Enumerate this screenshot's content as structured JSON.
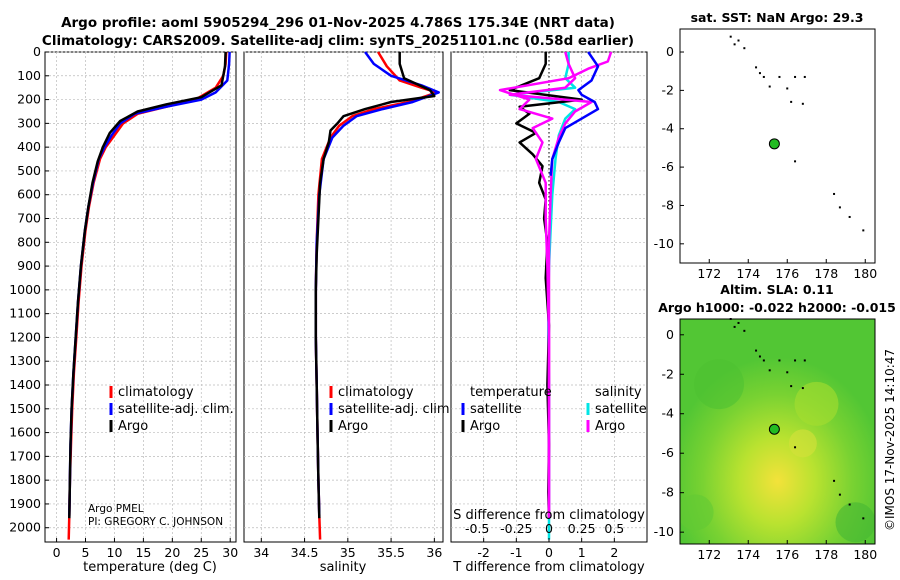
{
  "title_line1": "Argo profile: aoml 5905294_296 01-Nov-2025 4.786S 175.34E (NRT data)",
  "title_line2": "Climatology: CARS2009. Satellite-adj clim: synTS_20251101.nc (0.58d earlier)",
  "credit_line1": "Argo PMEL",
  "credit_line2": "PI: GREGORY C. JOHNSON",
  "timestamp": "©IMOS 17-Nov-2025 14:10:47",
  "colors": {
    "climatology": "#ff0000",
    "satellite": "#0000ff",
    "argo": "#000000",
    "sat_T": "#00e5e5",
    "sat_S": "#ff00ff",
    "argo_S": "#ff00ff",
    "marker": "#22bb22"
  },
  "chart_data": [
    {
      "type": "line",
      "id": "temperature",
      "xlabel": "temperature (deg C)",
      "ylabel": "",
      "xlim": [
        -2,
        31
      ],
      "ylim": [
        2060,
        0
      ],
      "xticks": [
        0,
        5,
        10,
        15,
        20,
        25,
        30
      ],
      "yticks": [
        0,
        100,
        200,
        300,
        400,
        500,
        600,
        700,
        800,
        900,
        1000,
        1100,
        1200,
        1300,
        1400,
        1500,
        1600,
        1700,
        1800,
        1900,
        2000
      ],
      "legend": [
        "climatology",
        "satellite-adj. clim.",
        "Argo"
      ],
      "series": [
        {
          "name": "climatology",
          "color": "#ff0000",
          "x": [
            29.3,
            29.2,
            28.8,
            27.5,
            24,
            19,
            14,
            11.5,
            10,
            8.5,
            7.5,
            6.4,
            5.6,
            5.0,
            4.3,
            3.8,
            3.4,
            3.0,
            2.7,
            2.5,
            2.3,
            2.2,
            2.1
          ],
          "y": [
            0,
            50,
            100,
            150,
            200,
            230,
            260,
            300,
            350,
            400,
            450,
            550,
            650,
            750,
            900,
            1050,
            1200,
            1350,
            1500,
            1650,
            1800,
            1950,
            2050
          ]
        },
        {
          "name": "satellite-adj. clim.",
          "color": "#0000ff",
          "x": [
            29.9,
            29.8,
            29.5,
            27.5,
            25,
            19,
            13.5,
            11,
            9.5,
            8.3,
            7.3,
            6.3,
            5.5,
            4.9,
            4.2,
            3.7,
            3.3,
            2.9,
            2.6,
            2.4,
            2.3,
            2.2
          ],
          "y": [
            0,
            50,
            120,
            170,
            200,
            230,
            260,
            300,
            350,
            400,
            450,
            550,
            650,
            750,
            900,
            1050,
            1200,
            1350,
            1500,
            1650,
            1800,
            1950
          ]
        },
        {
          "name": "Argo",
          "color": "#000000",
          "x": [
            29.2,
            29.1,
            28.5,
            25,
            19,
            14,
            11,
            9.2,
            8.0,
            7.1,
            6.2,
            5.5,
            4.9,
            4.2,
            3.7,
            3.3,
            2.9,
            2.6,
            2.4,
            2.3,
            2.2
          ],
          "y": [
            0,
            60,
            140,
            190,
            220,
            250,
            290,
            340,
            400,
            460,
            550,
            650,
            750,
            900,
            1050,
            1200,
            1350,
            1500,
            1650,
            1800,
            1960
          ]
        }
      ]
    },
    {
      "type": "line",
      "id": "salinity",
      "xlabel": "salinity",
      "ylabel": "",
      "xlim": [
        33.8,
        36.1
      ],
      "ylim": [
        2060,
        0
      ],
      "xticks": [
        34,
        34.5,
        35,
        35.5,
        36
      ],
      "xticklabels": [
        "34",
        "34.5",
        "35",
        "35.5",
        "36"
      ],
      "legend": [
        "climatology",
        "satellite-adj. clim.",
        "Argo"
      ],
      "series": [
        {
          "name": "climatology",
          "color": "#ff0000",
          "x": [
            35.35,
            35.45,
            35.6,
            35.85,
            36.03,
            35.7,
            35.3,
            35.05,
            34.9,
            34.8,
            34.7,
            34.66,
            34.64,
            34.63,
            34.63,
            34.64,
            34.65,
            34.66,
            34.67,
            34.68
          ],
          "y": [
            0,
            60,
            120,
            150,
            170,
            210,
            240,
            270,
            310,
            360,
            450,
            600,
            800,
            1000,
            1200,
            1400,
            1600,
            1800,
            1950,
            2050
          ]
        },
        {
          "name": "satellite-adj. clim.",
          "color": "#0000ff",
          "x": [
            35.2,
            35.3,
            35.5,
            35.85,
            36.05,
            35.75,
            35.4,
            35.1,
            34.95,
            34.82,
            34.72,
            34.67,
            34.64,
            34.63,
            34.63,
            34.64,
            34.65,
            34.66,
            34.67
          ],
          "y": [
            0,
            50,
            100,
            140,
            170,
            210,
            240,
            270,
            310,
            360,
            450,
            600,
            800,
            1000,
            1200,
            1400,
            1600,
            1800,
            1950
          ]
        },
        {
          "name": "Argo",
          "color": "#000000",
          "x": [
            35.6,
            35.6,
            35.65,
            35.95,
            36.0,
            35.5,
            35.2,
            34.95,
            34.88,
            34.8,
            34.78,
            34.72,
            34.68,
            34.66,
            34.64,
            34.63,
            34.63,
            34.64,
            34.65,
            34.66,
            34.67
          ],
          "y": [
            0,
            50,
            110,
            160,
            185,
            210,
            240,
            270,
            300,
            330,
            380,
            450,
            550,
            700,
            850,
            1000,
            1200,
            1400,
            1600,
            1800,
            1960
          ]
        }
      ]
    },
    {
      "type": "line",
      "id": "difference",
      "xlabel": "T difference from climatology",
      "top_xlabel": "S difference from climatology",
      "xlim": [
        -3,
        3
      ],
      "ylim": [
        2060,
        0
      ],
      "xticks": [
        -2,
        -1,
        0,
        1,
        2
      ],
      "xticklabels": [
        "-2",
        "-1",
        "0",
        "1",
        "2"
      ],
      "top_xticklabels": [
        "-0.5",
        "-0.25",
        "0",
        "0.25",
        "0.5"
      ],
      "legend_title_T": "temperature",
      "legend_title_S": "salinity",
      "legend": [
        "satellite",
        "Argo",
        "satellite",
        "Argo"
      ],
      "series": [
        {
          "name": "T satellite",
          "color": "#00e5e5",
          "x": [
            0.6,
            0.6,
            0.5,
            0.8,
            -1.2,
            0.3,
            0.8,
            0.5,
            0.3,
            0.2,
            0.1,
            0.05,
            0.0,
            -0.02,
            -0.02,
            0,
            0,
            0,
            0,
            0,
            0
          ],
          "y": [
            0,
            50,
            110,
            150,
            180,
            210,
            240,
            280,
            350,
            450,
            600,
            750,
            900,
            1050,
            1200,
            1400,
            1600,
            1750,
            1850,
            1950,
            2050
          ]
        },
        {
          "name": "T Argo",
          "color": "#000000",
          "x": [
            -0.1,
            -0.1,
            -0.3,
            -1.2,
            1.0,
            -0.9,
            -0.6,
            -1.0,
            -0.4,
            -0.9,
            -0.5,
            -0.2,
            -0.3,
            -0.1,
            -0.15,
            -0.05,
            -0.1,
            0.0,
            -0.05,
            0.0,
            -0.02,
            0.0
          ],
          "y": [
            0,
            50,
            110,
            160,
            200,
            230,
            260,
            300,
            340,
            380,
            430,
            480,
            550,
            620,
            700,
            800,
            950,
            1150,
            1400,
            1650,
            1850,
            1960
          ]
        },
        {
          "name": "S satellite",
          "color": "#ff00ff",
          "x": [
            0.5,
            0.6,
            0.8,
            0.5,
            -1.2,
            1.3,
            0.8,
            0.5,
            0.3,
            0.1,
            0.05,
            0.0,
            0.0,
            0.0,
            0.0
          ],
          "y": [
            0,
            50,
            110,
            150,
            180,
            210,
            250,
            300,
            360,
            450,
            600,
            800,
            1100,
            1500,
            1950
          ]
        },
        {
          "name": "S Argo",
          "color": "#ff00ff",
          "x": [
            1.9,
            1.8,
            1.2,
            0.6,
            -1.5,
            -0.6,
            -0.9,
            0.1,
            -0.5,
            -0.2,
            -0.4,
            -0.1,
            -0.1,
            -0.05,
            0.0,
            0.0,
            0.0
          ],
          "y": [
            0,
            40,
            70,
            110,
            160,
            200,
            240,
            280,
            320,
            380,
            450,
            550,
            700,
            900,
            1200,
            1600,
            1960
          ]
        },
        {
          "name": "S satellite clim",
          "color": "#0000ff",
          "x": [
            1.2,
            1.5,
            1.3,
            0.9,
            1.0,
            1.4,
            1.5,
            1.0,
            0.5,
            0.3,
            0.1,
            0.05
          ],
          "y": [
            0,
            60,
            120,
            160,
            180,
            210,
            240,
            280,
            320,
            380,
            450,
            520
          ]
        }
      ]
    },
    {
      "type": "scatter",
      "id": "sst_map",
      "title": "sat. SST: NaN Argo: 29.3",
      "xlim": [
        170.5,
        180.5
      ],
      "ylim": [
        -11,
        1.2
      ],
      "xticks": [
        172,
        174,
        176,
        178,
        180
      ],
      "yticks": [
        0,
        -2,
        -4,
        -6,
        -8,
        -10
      ],
      "argo_position": [
        175.34,
        -4.786
      ]
    },
    {
      "type": "heatmap",
      "id": "sla_map",
      "title": "Altim. SLA: 0.11",
      "subtitle": "Argo h1000: -0.022 h2000: -0.015",
      "xlim": [
        170.5,
        180.5
      ],
      "ylim": [
        -10.6,
        0.8
      ],
      "xticks": [
        172,
        174,
        176,
        178,
        180
      ],
      "yticks": [
        0,
        -2,
        -4,
        -6,
        -8,
        -10
      ],
      "argo_position": [
        175.34,
        -4.786
      ]
    }
  ]
}
